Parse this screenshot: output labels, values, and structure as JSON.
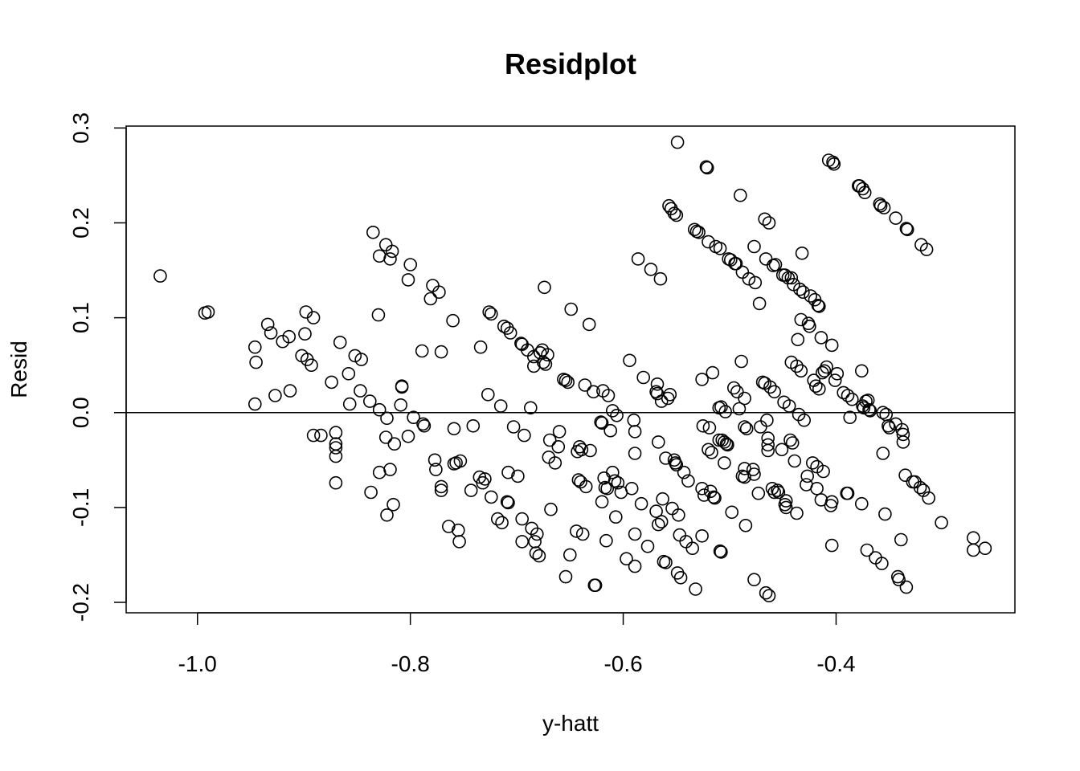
{
  "chart_data": {
    "type": "scatter",
    "title": "Residplot",
    "xlabel": "y-hatt",
    "ylabel": "Resid",
    "xlim": [
      -1.067,
      -0.232
    ],
    "ylim": [
      -0.211,
      0.302
    ],
    "x_ticks": [
      {
        "value": -1.0,
        "label": "-1.0"
      },
      {
        "value": -0.8,
        "label": "-0.8"
      },
      {
        "value": -0.6,
        "label": "-0.6"
      },
      {
        "value": -0.4,
        "label": "-0.4"
      }
    ],
    "y_ticks": [
      {
        "value": -0.2,
        "label": "-0.2"
      },
      {
        "value": -0.1,
        "label": "-0.1"
      },
      {
        "value": 0.0,
        "label": "0.0"
      },
      {
        "value": 0.1,
        "label": "0.1"
      },
      {
        "value": 0.2,
        "label": "0.2"
      },
      {
        "value": 0.3,
        "label": "0.3"
      }
    ],
    "reference_line": {
      "y": 0.0
    },
    "grid": false,
    "marker": "open-circle",
    "points": [
      [
        -1.035,
        0.144
      ],
      [
        -0.993,
        0.105
      ],
      [
        -0.99,
        0.106
      ],
      [
        -0.946,
        0.069
      ],
      [
        -0.945,
        0.053
      ],
      [
        -0.946,
        0.009
      ],
      [
        -0.934,
        0.093
      ],
      [
        -0.931,
        0.084
      ],
      [
        -0.927,
        0.018
      ],
      [
        -0.92,
        0.075
      ],
      [
        -0.914,
        0.08
      ],
      [
        -0.913,
        0.023
      ],
      [
        -0.902,
        0.06
      ],
      [
        -0.899,
        0.083
      ],
      [
        -0.898,
        0.106
      ],
      [
        -0.897,
        0.056
      ],
      [
        -0.893,
        0.05
      ],
      [
        -0.891,
        0.1
      ],
      [
        -0.891,
        -0.024
      ],
      [
        -0.884,
        -0.024
      ],
      [
        -0.874,
        0.032
      ],
      [
        -0.87,
        -0.021
      ],
      [
        -0.87,
        -0.033
      ],
      [
        -0.87,
        -0.037
      ],
      [
        -0.87,
        -0.046
      ],
      [
        -0.87,
        -0.074
      ],
      [
        -0.866,
        0.074
      ],
      [
        -0.858,
        0.041
      ],
      [
        -0.857,
        0.009
      ],
      [
        -0.852,
        0.06
      ],
      [
        -0.847,
        0.023
      ],
      [
        -0.846,
        0.056
      ],
      [
        -0.838,
        0.012
      ],
      [
        -0.837,
        -0.084
      ],
      [
        -0.835,
        0.19
      ],
      [
        -0.83,
        0.103
      ],
      [
        -0.829,
        0.165
      ],
      [
        -0.829,
        0.003
      ],
      [
        -0.829,
        -0.063
      ],
      [
        -0.823,
        0.177
      ],
      [
        -0.823,
        -0.026
      ],
      [
        -0.822,
        -0.006
      ],
      [
        -0.822,
        -0.108
      ],
      [
        -0.819,
        0.162
      ],
      [
        -0.819,
        -0.06
      ],
      [
        -0.817,
        0.17
      ],
      [
        -0.816,
        -0.097
      ],
      [
        -0.815,
        -0.033
      ],
      [
        -0.809,
        0.008
      ],
      [
        -0.808,
        0.027
      ],
      [
        -0.808,
        0.028
      ],
      [
        -0.802,
        0.14
      ],
      [
        -0.802,
        -0.025
      ],
      [
        -0.8,
        0.156
      ],
      [
        -0.797,
        -0.005
      ],
      [
        -0.789,
        0.065
      ],
      [
        -0.788,
        -0.012
      ],
      [
        -0.787,
        -0.014
      ],
      [
        -0.781,
        0.12
      ],
      [
        -0.779,
        0.134
      ],
      [
        -0.777,
        -0.05
      ],
      [
        -0.776,
        -0.06
      ],
      [
        -0.773,
        0.127
      ],
      [
        -0.771,
        0.064
      ],
      [
        -0.771,
        -0.078
      ],
      [
        -0.771,
        -0.082
      ],
      [
        -0.764,
        -0.12
      ],
      [
        -0.76,
        0.097
      ],
      [
        -0.759,
        -0.017
      ],
      [
        -0.759,
        -0.054
      ],
      [
        -0.757,
        -0.053
      ],
      [
        -0.755,
        -0.124
      ],
      [
        -0.754,
        -0.136
      ],
      [
        -0.753,
        -0.051
      ],
      [
        -0.743,
        -0.082
      ],
      [
        -0.741,
        -0.014
      ],
      [
        -0.735,
        -0.068
      ],
      [
        -0.734,
        0.069
      ],
      [
        -0.732,
        -0.074
      ],
      [
        -0.73,
        -0.07
      ],
      [
        -0.727,
        0.019
      ],
      [
        -0.726,
        0.106
      ],
      [
        -0.724,
        0.104
      ],
      [
        -0.724,
        -0.089
      ],
      [
        -0.718,
        -0.112
      ],
      [
        -0.715,
        0.007
      ],
      [
        -0.714,
        -0.116
      ],
      [
        -0.712,
        0.091
      ],
      [
        -0.709,
        0.089
      ],
      [
        -0.709,
        -0.094
      ],
      [
        -0.708,
        -0.063
      ],
      [
        -0.708,
        -0.095
      ],
      [
        -0.706,
        0.084
      ],
      [
        -0.703,
        -0.015
      ],
      [
        -0.699,
        -0.067
      ],
      [
        -0.696,
        0.073
      ],
      [
        -0.695,
        0.072
      ],
      [
        -0.695,
        -0.112
      ],
      [
        -0.695,
        -0.136
      ],
      [
        -0.693,
        -0.024
      ],
      [
        -0.69,
        0.066
      ],
      [
        -0.687,
        0.005
      ],
      [
        -0.686,
        -0.122
      ],
      [
        -0.684,
        0.059
      ],
      [
        -0.684,
        0.049
      ],
      [
        -0.683,
        -0.136
      ],
      [
        -0.682,
        -0.148
      ],
      [
        -0.681,
        -0.128
      ],
      [
        -0.679,
        -0.151
      ],
      [
        -0.678,
        0.063
      ],
      [
        -0.676,
        0.066
      ],
      [
        -0.675,
        0.053
      ],
      [
        -0.674,
        0.132
      ],
      [
        -0.673,
        0.051
      ],
      [
        -0.671,
        0.061
      ],
      [
        -0.67,
        -0.047
      ],
      [
        -0.669,
        -0.029
      ],
      [
        -0.668,
        -0.102
      ],
      [
        -0.664,
        -0.053
      ],
      [
        -0.661,
        -0.036
      ],
      [
        -0.66,
        -0.02
      ],
      [
        -0.656,
        0.035
      ],
      [
        -0.654,
        0.034
      ],
      [
        -0.654,
        -0.173
      ],
      [
        -0.652,
        0.032
      ],
      [
        -0.65,
        -0.15
      ],
      [
        -0.649,
        0.109
      ],
      [
        -0.644,
        -0.125
      ],
      [
        -0.643,
        -0.041
      ],
      [
        -0.642,
        -0.071
      ],
      [
        -0.641,
        -0.036
      ],
      [
        -0.64,
        -0.073
      ],
      [
        -0.639,
        -0.039
      ],
      [
        -0.638,
        -0.128
      ],
      [
        -0.636,
        0.029
      ],
      [
        -0.635,
        -0.078
      ],
      [
        -0.632,
        0.093
      ],
      [
        -0.631,
        -0.04
      ],
      [
        -0.628,
        0.022
      ],
      [
        -0.627,
        -0.182
      ],
      [
        -0.626,
        -0.182
      ],
      [
        -0.621,
        -0.01
      ],
      [
        -0.62,
        -0.011
      ],
      [
        -0.62,
        -0.094
      ],
      [
        -0.619,
        0.023
      ],
      [
        -0.618,
        -0.069
      ],
      [
        -0.617,
        -0.079
      ],
      [
        -0.616,
        -0.135
      ],
      [
        -0.615,
        -0.08
      ],
      [
        -0.614,
        0.018
      ],
      [
        -0.612,
        -0.019
      ],
      [
        -0.61,
        0.002
      ],
      [
        -0.61,
        -0.063
      ],
      [
        -0.608,
        -0.072
      ],
      [
        -0.607,
        -0.11
      ],
      [
        -0.606,
        -0.003
      ],
      [
        -0.605,
        -0.074
      ],
      [
        -0.602,
        -0.084
      ],
      [
        -0.597,
        -0.154
      ],
      [
        -0.594,
        0.055
      ],
      [
        -0.592,
        -0.08
      ],
      [
        -0.59,
        -0.008
      ],
      [
        -0.589,
        -0.02
      ],
      [
        -0.589,
        -0.043
      ],
      [
        -0.589,
        -0.128
      ],
      [
        -0.589,
        -0.162
      ],
      [
        -0.586,
        0.162
      ],
      [
        -0.583,
        -0.096
      ],
      [
        -0.581,
        0.037
      ],
      [
        -0.577,
        -0.141
      ],
      [
        -0.574,
        0.151
      ],
      [
        -0.569,
        -0.104
      ],
      [
        -0.569,
        0.022
      ],
      [
        -0.568,
        0.03
      ],
      [
        -0.568,
        0.02
      ],
      [
        -0.567,
        -0.118
      ],
      [
        -0.567,
        -0.031
      ],
      [
        -0.565,
        0.141
      ],
      [
        -0.564,
        -0.115
      ],
      [
        -0.564,
        0.012
      ],
      [
        -0.563,
        -0.091
      ],
      [
        -0.562,
        -0.157
      ],
      [
        -0.56,
        -0.158
      ],
      [
        -0.56,
        -0.048
      ],
      [
        -0.558,
        0.015
      ],
      [
        -0.557,
        0.218
      ],
      [
        -0.556,
        0.019
      ],
      [
        -0.555,
        0.215
      ],
      [
        -0.554,
        -0.101
      ],
      [
        -0.552,
        -0.05
      ],
      [
        -0.552,
        0.21
      ],
      [
        -0.551,
        -0.053
      ],
      [
        -0.55,
        -0.055
      ],
      [
        -0.55,
        0.208
      ],
      [
        -0.549,
        -0.169
      ],
      [
        -0.549,
        0.285
      ],
      [
        -0.548,
        -0.108
      ],
      [
        -0.547,
        -0.129
      ],
      [
        -0.546,
        -0.174
      ],
      [
        -0.543,
        -0.063
      ],
      [
        -0.541,
        -0.136
      ],
      [
        -0.539,
        -0.072
      ],
      [
        -0.535,
        -0.143
      ],
      [
        -0.533,
        0.193
      ],
      [
        -0.532,
        -0.186
      ],
      [
        -0.531,
        0.191
      ],
      [
        -0.529,
        0.19
      ],
      [
        -0.526,
        -0.08
      ],
      [
        -0.526,
        -0.13
      ],
      [
        -0.526,
        0.035
      ],
      [
        -0.525,
        -0.014
      ],
      [
        -0.524,
        -0.087
      ],
      [
        -0.522,
        0.259
      ],
      [
        -0.521,
        0.258
      ],
      [
        -0.52,
        0.18
      ],
      [
        -0.52,
        -0.039
      ],
      [
        -0.519,
        -0.016
      ],
      [
        -0.518,
        -0.083
      ],
      [
        -0.517,
        -0.042
      ],
      [
        -0.516,
        0.042
      ],
      [
        -0.515,
        -0.089
      ],
      [
        -0.514,
        -0.09
      ],
      [
        -0.513,
        0.175
      ],
      [
        -0.51,
        0.005
      ],
      [
        -0.51,
        -0.029
      ],
      [
        -0.509,
        -0.146
      ],
      [
        -0.509,
        0.173
      ],
      [
        -0.508,
        -0.147
      ],
      [
        -0.508,
        0.006
      ],
      [
        -0.507,
        -0.029
      ],
      [
        -0.505,
        -0.031
      ],
      [
        -0.505,
        -0.053
      ],
      [
        -0.504,
        0.001
      ],
      [
        -0.503,
        -0.033
      ],
      [
        -0.502,
        -0.034
      ],
      [
        -0.501,
        0.162
      ],
      [
        -0.499,
        0.161
      ],
      [
        -0.498,
        -0.105
      ],
      [
        -0.496,
        0.026
      ],
      [
        -0.495,
        0.157
      ],
      [
        -0.494,
        0.157
      ],
      [
        -0.493,
        0.022
      ],
      [
        -0.491,
        0.004
      ],
      [
        -0.49,
        0.229
      ],
      [
        -0.489,
        0.054
      ],
      [
        -0.488,
        -0.067
      ],
      [
        -0.488,
        0.148
      ],
      [
        -0.486,
        0.015
      ],
      [
        -0.486,
        -0.059
      ],
      [
        -0.486,
        -0.015
      ],
      [
        -0.486,
        -0.068
      ],
      [
        -0.485,
        -0.119
      ],
      [
        -0.484,
        -0.017
      ],
      [
        -0.482,
        0.141
      ],
      [
        -0.478,
        -0.06
      ],
      [
        -0.477,
        -0.176
      ],
      [
        -0.477,
        -0.065
      ],
      [
        -0.477,
        0.175
      ],
      [
        -0.476,
        0.137
      ],
      [
        -0.473,
        -0.085
      ],
      [
        -0.472,
        0.115
      ],
      [
        -0.471,
        -0.015
      ],
      [
        -0.469,
        0.032
      ],
      [
        -0.467,
        0.031
      ],
      [
        -0.467,
        0.204
      ],
      [
        -0.466,
        0.162
      ],
      [
        -0.466,
        -0.19
      ],
      [
        -0.465,
        -0.008
      ],
      [
        -0.464,
        -0.034
      ],
      [
        -0.464,
        -0.027
      ],
      [
        -0.464,
        -0.04
      ],
      [
        -0.463,
        -0.193
      ],
      [
        -0.463,
        0.2
      ],
      [
        -0.462,
        0.027
      ],
      [
        -0.46,
        -0.08
      ],
      [
        -0.459,
        0.155
      ],
      [
        -0.458,
        0.022
      ],
      [
        -0.458,
        -0.084
      ],
      [
        -0.457,
        0.156
      ],
      [
        -0.455,
        -0.082
      ],
      [
        -0.454,
        -0.084
      ],
      [
        -0.451,
        -0.039
      ],
      [
        -0.45,
        0.145
      ],
      [
        -0.449,
        0.011
      ],
      [
        -0.448,
        -0.097
      ],
      [
        -0.448,
        0.145
      ],
      [
        -0.447,
        -0.093
      ],
      [
        -0.447,
        -0.1
      ],
      [
        -0.445,
        0.142
      ],
      [
        -0.444,
        0.007
      ],
      [
        -0.443,
        -0.029
      ],
      [
        -0.442,
        0.142
      ],
      [
        -0.442,
        0.053
      ],
      [
        -0.441,
        -0.032
      ],
      [
        -0.44,
        0.135
      ],
      [
        -0.439,
        -0.051
      ],
      [
        -0.437,
        -0.106
      ],
      [
        -0.437,
        0.049
      ],
      [
        -0.436,
        0.077
      ],
      [
        -0.435,
        -0.002
      ],
      [
        -0.434,
        0.13
      ],
      [
        -0.433,
        0.044
      ],
      [
        -0.433,
        0.098
      ],
      [
        -0.432,
        0.168
      ],
      [
        -0.431,
        0.127
      ],
      [
        -0.43,
        -0.008
      ],
      [
        -0.428,
        -0.076
      ],
      [
        -0.427,
        -0.067
      ],
      [
        -0.426,
        0.094
      ],
      [
        -0.425,
        0.091
      ],
      [
        -0.424,
        0.123
      ],
      [
        -0.422,
        -0.053
      ],
      [
        -0.421,
        0.034
      ],
      [
        -0.42,
        0.119
      ],
      [
        -0.419,
        0.028
      ],
      [
        -0.418,
        -0.08
      ],
      [
        -0.418,
        -0.057
      ],
      [
        -0.417,
        0.113
      ],
      [
        -0.416,
        0.025
      ],
      [
        -0.416,
        0.112
      ],
      [
        -0.414,
        -0.092
      ],
      [
        -0.414,
        0.079
      ],
      [
        -0.413,
        0.042
      ],
      [
        -0.412,
        -0.062
      ],
      [
        -0.411,
        0.044
      ],
      [
        -0.409,
        0.048
      ],
      [
        -0.407,
        0.266
      ],
      [
        -0.405,
        -0.098
      ],
      [
        -0.404,
        0.071
      ],
      [
        -0.404,
        -0.094
      ],
      [
        -0.404,
        -0.14
      ],
      [
        -0.403,
        0.264
      ],
      [
        -0.402,
        0.262
      ],
      [
        -0.401,
        0.034
      ],
      [
        -0.399,
        0.041
      ],
      [
        -0.393,
        0.021
      ],
      [
        -0.39,
        -0.085
      ],
      [
        -0.389,
        -0.085
      ],
      [
        -0.389,
        0.018
      ],
      [
        -0.387,
        -0.005
      ],
      [
        -0.385,
        0.014
      ],
      [
        -0.379,
        0.239
      ],
      [
        -0.378,
        0.239
      ],
      [
        -0.376,
        -0.096
      ],
      [
        -0.376,
        0.044
      ],
      [
        -0.375,
        0.236
      ],
      [
        -0.375,
        0.007
      ],
      [
        -0.374,
        0.005
      ],
      [
        -0.373,
        0.232
      ],
      [
        -0.372,
        0.012
      ],
      [
        -0.371,
        -0.145
      ],
      [
        -0.37,
        0.013
      ],
      [
        -0.369,
        0.003
      ],
      [
        -0.368,
        0.002
      ],
      [
        -0.363,
        -0.153
      ],
      [
        -0.359,
        0.22
      ],
      [
        -0.358,
        0.218
      ],
      [
        -0.357,
        -0.159
      ],
      [
        -0.356,
        0.0
      ],
      [
        -0.356,
        -0.043
      ],
      [
        -0.355,
        0.216
      ],
      [
        -0.354,
        -0.107
      ],
      [
        -0.353,
        -0.002
      ],
      [
        -0.351,
        -0.014
      ],
      [
        -0.35,
        -0.016
      ],
      [
        -0.344,
        0.205
      ],
      [
        -0.344,
        -0.012
      ],
      [
        -0.342,
        -0.173
      ],
      [
        -0.341,
        -0.176
      ],
      [
        -0.339,
        -0.134
      ],
      [
        -0.338,
        -0.018
      ],
      [
        -0.337,
        -0.031
      ],
      [
        -0.337,
        -0.023
      ],
      [
        -0.335,
        -0.066
      ],
      [
        -0.334,
        0.194
      ],
      [
        -0.334,
        -0.184
      ],
      [
        -0.333,
        0.193
      ],
      [
        -0.328,
        -0.073
      ],
      [
        -0.326,
        -0.073
      ],
      [
        -0.321,
        -0.079
      ],
      [
        -0.32,
        0.177
      ],
      [
        -0.318,
        -0.082
      ],
      [
        -0.315,
        0.172
      ],
      [
        -0.313,
        -0.09
      ],
      [
        -0.301,
        -0.116
      ],
      [
        -0.271,
        -0.132
      ],
      [
        -0.271,
        -0.145
      ],
      [
        -0.26,
        -0.143
      ]
    ]
  }
}
